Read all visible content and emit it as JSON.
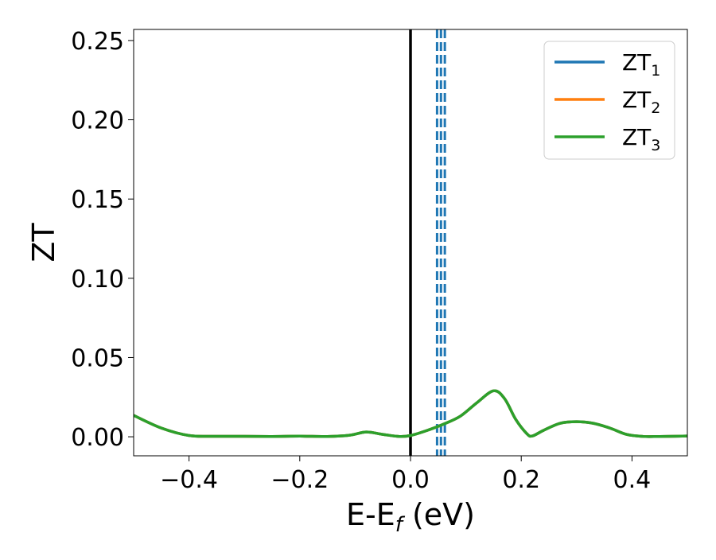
{
  "chart_data": {
    "type": "line",
    "xlabel": "E-E",
    "xlabel_sub": "f",
    "xlabel_unit": " (eV)",
    "ylabel": "ZT",
    "xlim": [
      -0.5,
      0.5
    ],
    "ylim": [
      -0.012,
      0.257
    ],
    "xticks": [
      -0.4,
      -0.2,
      0.0,
      0.2,
      0.4
    ],
    "xtick_labels": [
      "−0.4",
      "−0.2",
      "0.0",
      "0.2",
      "0.4"
    ],
    "yticks": [
      0.0,
      0.05,
      0.1,
      0.15,
      0.2,
      0.25
    ],
    "ytick_labels": [
      "0.00",
      "0.05",
      "0.10",
      "0.15",
      "0.20",
      "0.25"
    ],
    "grid": false,
    "legend_position": "top-right",
    "vertical_lines": [
      {
        "x": 0.0,
        "style": "solid",
        "color": "#000000"
      },
      {
        "x": 0.048,
        "style": "dashed",
        "color": "#1f77b4"
      },
      {
        "x": 0.055,
        "style": "dashed",
        "color": "#1f77b4"
      },
      {
        "x": 0.062,
        "style": "dashed",
        "color": "#1f77b4"
      }
    ],
    "x": [
      -0.5,
      -0.45,
      -0.4,
      -0.35,
      -0.3,
      -0.25,
      -0.2,
      -0.15,
      -0.11,
      -0.08,
      -0.05,
      -0.02,
      0.0,
      0.03,
      0.06,
      0.09,
      0.12,
      0.15,
      0.17,
      0.19,
      0.21,
      0.22,
      0.24,
      0.27,
      0.3,
      0.33,
      0.36,
      0.39,
      0.42,
      0.45,
      0.5
    ],
    "series": [
      {
        "name": "ZT",
        "sub": "1",
        "color": "#1f77b4",
        "values": [
          0.0135,
          0.0055,
          0.0008,
          0.0003,
          0.0003,
          0.0002,
          0.0004,
          0.0002,
          0.001,
          0.003,
          0.0015,
          0.0002,
          0.0008,
          0.004,
          0.008,
          0.013,
          0.0215,
          0.029,
          0.024,
          0.011,
          0.002,
          0.0005,
          0.004,
          0.0085,
          0.0095,
          0.0085,
          0.0055,
          0.0015,
          0.0002,
          0.0002,
          0.0005
        ]
      },
      {
        "name": "ZT",
        "sub": "2",
        "color": "#ff7f0e",
        "values": [
          0.0135,
          0.0055,
          0.0008,
          0.0003,
          0.0003,
          0.0002,
          0.0004,
          0.0002,
          0.001,
          0.003,
          0.0015,
          0.0002,
          0.0008,
          0.004,
          0.008,
          0.013,
          0.0215,
          0.029,
          0.024,
          0.011,
          0.002,
          0.0005,
          0.004,
          0.0085,
          0.0095,
          0.0085,
          0.0055,
          0.0015,
          0.0002,
          0.0002,
          0.0005
        ]
      },
      {
        "name": "ZT",
        "sub": "3",
        "color": "#2ca02c",
        "values": [
          0.0135,
          0.0055,
          0.0008,
          0.0003,
          0.0003,
          0.0002,
          0.0004,
          0.0002,
          0.001,
          0.003,
          0.0015,
          0.0002,
          0.0008,
          0.004,
          0.008,
          0.013,
          0.0215,
          0.029,
          0.024,
          0.011,
          0.002,
          0.0005,
          0.004,
          0.0085,
          0.0095,
          0.0085,
          0.0055,
          0.0015,
          0.0002,
          0.0002,
          0.0005
        ]
      }
    ]
  }
}
